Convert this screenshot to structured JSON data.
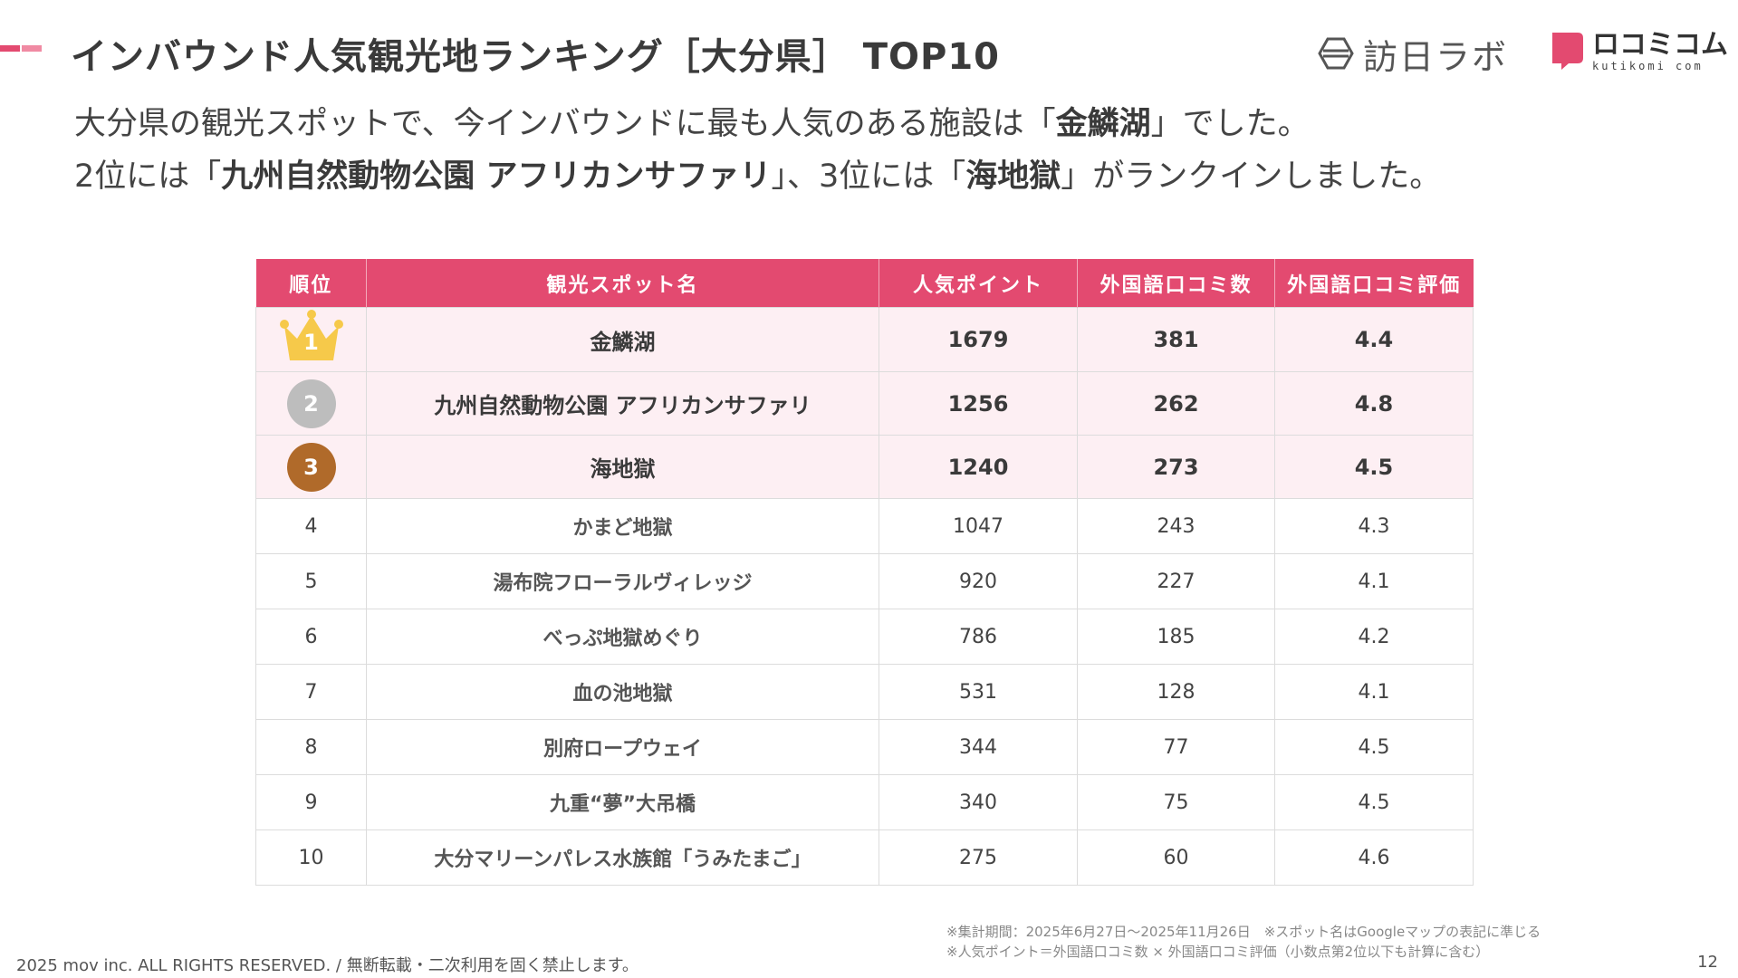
{
  "colors": {
    "accent": "#e34a70",
    "accent_light": "#f08aa3",
    "row_highlight": "#fdeff3",
    "gold": "#f6c94a",
    "silver": "#bdbdbd",
    "bronze": "#b06a2a"
  },
  "header": {
    "title": "インバウンド人気観光地ランキング［大分県］ TOP10"
  },
  "logos": {
    "hounichi": "訪日ラボ",
    "kuchikomi": "ロコミコム",
    "kuchikomi_sub": "kutikomi com"
  },
  "lead": {
    "l1_a": "大分県の観光スポットで、今インバウンドに最も人気のある施設は「",
    "l1_b": "金鱗湖",
    "l1_c": "」でした。",
    "l2_a": "2位には「",
    "l2_b": "九州自然動物公園 アフリカンサファリ",
    "l2_c": "」、3位には「",
    "l2_d": "海地獄",
    "l2_e": "」がランクインしました。"
  },
  "table": {
    "headers": [
      "順位",
      "観光スポット名",
      "人気ポイント",
      "外国語口コミ数",
      "外国語口コミ評価"
    ],
    "rows": [
      {
        "rank": "1",
        "name": "金鱗湖",
        "points": "1679",
        "reviews": "381",
        "rating": "4.4"
      },
      {
        "rank": "2",
        "name": "九州自然動物公園 アフリカンサファリ",
        "points": "1256",
        "reviews": "262",
        "rating": "4.8"
      },
      {
        "rank": "3",
        "name": "海地獄",
        "points": "1240",
        "reviews": "273",
        "rating": "4.5"
      },
      {
        "rank": "4",
        "name": "かまど地獄",
        "points": "1047",
        "reviews": "243",
        "rating": "4.3"
      },
      {
        "rank": "5",
        "name": "湯布院フローラルヴィレッジ",
        "points": "920",
        "reviews": "227",
        "rating": "4.1"
      },
      {
        "rank": "6",
        "name": "べっぷ地獄めぐり",
        "points": "786",
        "reviews": "185",
        "rating": "4.2"
      },
      {
        "rank": "7",
        "name": "血の池地獄",
        "points": "531",
        "reviews": "128",
        "rating": "4.1"
      },
      {
        "rank": "8",
        "name": "別府ロープウェイ",
        "points": "344",
        "reviews": "77",
        "rating": "4.5"
      },
      {
        "rank": "9",
        "name": "九重“夢”大吊橋",
        "points": "340",
        "reviews": "75",
        "rating": "4.5"
      },
      {
        "rank": "10",
        "name": "大分マリーンパレス水族館「うみたまご」",
        "points": "275",
        "reviews": "60",
        "rating": "4.6"
      }
    ]
  },
  "notes": {
    "n1": "※集計期間：2025年6月27日〜2025年11月26日　※スポット名はGoogleマップの表記に準じる",
    "n2": "※人気ポイント＝外国語口コミ数 × 外国語口コミ評価（小数点第2位以下も計算に含む）"
  },
  "footer": {
    "copyright": "2025 mov inc. ALL RIGHTS RESERVED. / 無断転載・二次利用を固く禁止します。",
    "page_number": "12"
  }
}
